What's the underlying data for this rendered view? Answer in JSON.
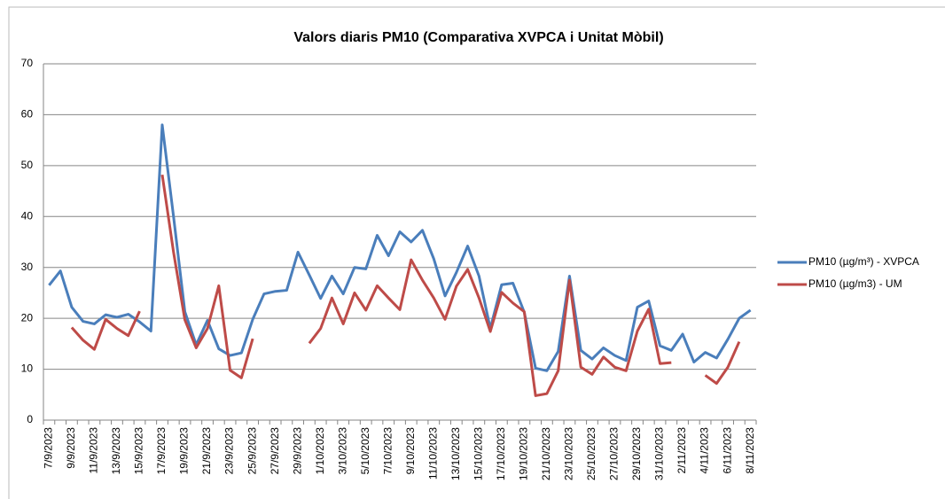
{
  "chart_data": {
    "type": "line",
    "title": "Valors diaris PM10 (Comparativa XVPCA i Unitat Mòbil)",
    "categories": [
      "7/9/2023",
      null,
      "9/9/2023",
      null,
      "11/9/2023",
      null,
      "13/9/2023",
      null,
      "15/9/2023",
      null,
      "17/9/2023",
      null,
      "19/9/2023",
      null,
      "21/9/2023",
      null,
      "23/9/2023",
      null,
      "25/9/2023",
      null,
      "27/9/2023",
      null,
      "29/9/2023",
      null,
      "1/10/2023",
      null,
      "3/10/2023",
      null,
      "5/10/2023",
      null,
      "7/10/2023",
      null,
      "9/10/2023",
      null,
      "11/10/2023",
      null,
      "13/10/2023",
      null,
      "15/10/2023",
      null,
      "17/10/2023",
      null,
      "19/10/2023",
      null,
      "21/10/2023",
      null,
      "23/10/2023",
      null,
      "25/10/2023",
      null,
      "27/10/2023",
      null,
      "29/10/2023",
      null,
      "31/10/2023",
      null,
      "2/11/2023",
      null,
      "4/11/2023",
      null,
      "6/11/2023",
      null,
      "8/11/2023"
    ],
    "series": [
      {
        "name": "PM10 (µg/m³) - XVPCA",
        "color": "#4a7ebb",
        "values": [
          26.5,
          29.3,
          22.2,
          19.4,
          18.9,
          20.7,
          20.2,
          20.8,
          19.3,
          17.5,
          58,
          40,
          21.3,
          14.8,
          19.6,
          14.0,
          12.7,
          13.2,
          19.8,
          24.8,
          25.3,
          25.5,
          33.0,
          28.5,
          23.9,
          28.3,
          24.8,
          30.0,
          29.7,
          36.3,
          32.3,
          37.0,
          35.0,
          37.3,
          31.7,
          24.4,
          29.0,
          34.2,
          28.3,
          18.0,
          26.6,
          26.9,
          21.2,
          10.2,
          9.7,
          13.5,
          28.3,
          13.7,
          12.0,
          14.2,
          12.7,
          11.7,
          22.2,
          23.4,
          14.6,
          13.7,
          16.9,
          11.4,
          13.3,
          12.2,
          15.9,
          20.0,
          21.6
        ]
      },
      {
        "name": "PM10 (µg/m3) - UM",
        "color": "#be4b48",
        "values": [
          null,
          null,
          18.2,
          15.7,
          13.9,
          19.8,
          18.0,
          16.6,
          21.4,
          null,
          48.2,
          33,
          19.7,
          14.2,
          18.0,
          26.4,
          9.8,
          8.3,
          16.0,
          null,
          null,
          null,
          null,
          15.1,
          18.0,
          24.0,
          18.9,
          25.0,
          21.6,
          26.4,
          24.0,
          21.7,
          31.5,
          27.5,
          24.0,
          19.8,
          26.3,
          29.6,
          24.0,
          17.4,
          25.1,
          23.0,
          21.3,
          4.8,
          5.2,
          9.7,
          27.5,
          10.4,
          9.0,
          12.4,
          10.4,
          9.7,
          17.5,
          21.8,
          11.1,
          11.3,
          null,
          null,
          8.8,
          7.2,
          10.4,
          15.4,
          null
        ]
      }
    ],
    "ylim": [
      0,
      70
    ],
    "yticks": [
      0,
      10,
      20,
      30,
      40,
      50,
      60,
      70
    ],
    "grid": true,
    "legend": "right"
  }
}
